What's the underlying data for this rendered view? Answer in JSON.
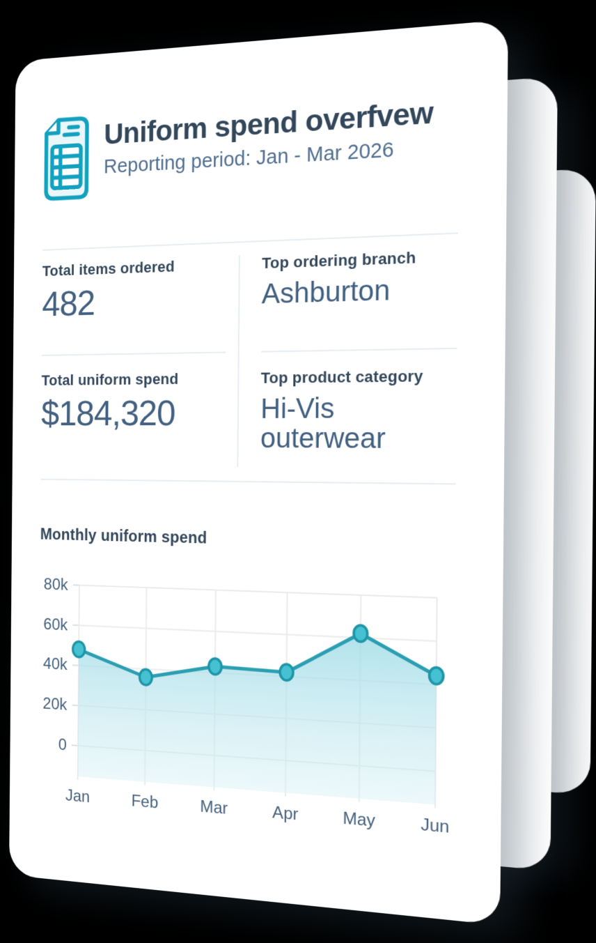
{
  "background_color": "#000000",
  "card": {
    "header": {
      "icon": "document-icon",
      "title": "Uniform spend overfvew",
      "subtitle": "Reporting period: Jan - Mar 2026"
    },
    "stats": [
      {
        "label": "Total items ordered",
        "value": "482"
      },
      {
        "label": "Top ordering branch",
        "value": "Ashburton"
      },
      {
        "label": "Total uniform spend",
        "value": "$184,320"
      },
      {
        "label": "Top product category",
        "value": "Hi-Vis outerwear"
      }
    ]
  },
  "chart_data": {
    "type": "area",
    "title": "Monthly uniform spend",
    "categories": [
      "Jan",
      "Feb",
      "Mar",
      "Apr",
      "May",
      "Jun"
    ],
    "values": [
      48000,
      36000,
      43000,
      42000,
      62000,
      44000
    ],
    "ytick_labels": [
      "80k",
      "60k",
      "40k",
      "20k",
      "0"
    ],
    "ylim": [
      0,
      80000
    ],
    "grid": true,
    "legend": "none",
    "xlabel": "",
    "ylabel": ""
  },
  "colors": {
    "accent_teal": "#12a1be",
    "text_dark": "#33475b",
    "text_muted": "#516f90",
    "value_text": "#42607f",
    "line": "#2b9fb1",
    "marker_fill": "#45c1d2",
    "marker_stroke": "#1f95a8",
    "area_top": "#96d8e4",
    "area_bottom": "#d6f0f5",
    "gridline": "#ebebee",
    "divider": "#e7edf2",
    "card": "#ffffff"
  }
}
